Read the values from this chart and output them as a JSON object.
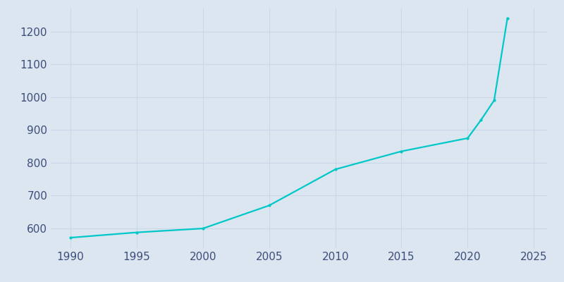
{
  "years": [
    1990,
    1995,
    2000,
    2005,
    2010,
    2015,
    2020,
    2021,
    2022,
    2023
  ],
  "population": [
    572,
    588,
    600,
    670,
    780,
    835,
    875,
    930,
    990,
    1240
  ],
  "line_color": "#00c8c8",
  "background_color": "#dce6f0",
  "plot_bg_color": "#dce6f0",
  "xlim": [
    1988.5,
    2026
  ],
  "ylim": [
    540,
    1270
  ],
  "xticks": [
    1990,
    1995,
    2000,
    2005,
    2010,
    2015,
    2020,
    2025
  ],
  "yticks": [
    600,
    700,
    800,
    900,
    1000,
    1100,
    1200
  ],
  "tick_label_color": "#3d4d7a",
  "grid_color": "#c8d8e8",
  "linewidth": 1.6,
  "markersize": 3.0
}
